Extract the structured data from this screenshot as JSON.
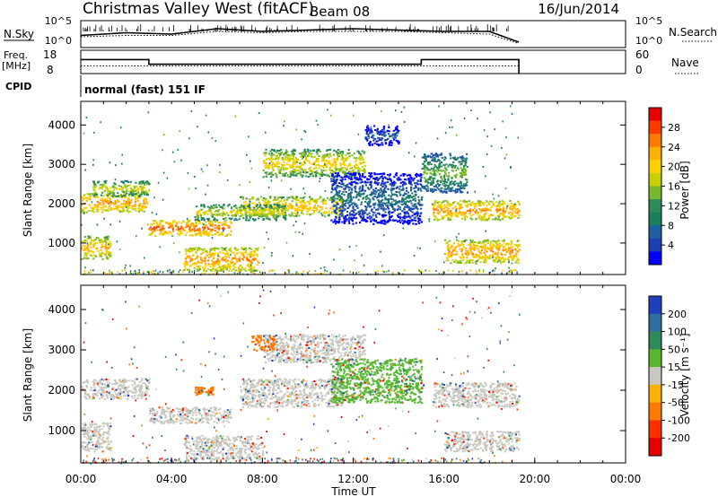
{
  "header": {
    "station": "Christmas Valley West (fitACF)",
    "beam": "Beam 08",
    "date": "16/Jun/2014"
  },
  "top_panels": {
    "nsky_label": "N.Sky",
    "nsky_ticks": [
      "10^5",
      "10^0"
    ],
    "nsearch_label": "N.Search",
    "nsearch_ticks": [
      "10^5",
      "10^0"
    ],
    "freq_label_1": "Freq.",
    "freq_label_2": "[MHz]",
    "freq_ticks": [
      "18",
      "8"
    ],
    "nave_label": "Nave",
    "nave_ticks": [
      "60",
      "0"
    ],
    "cpid_label": "CPID",
    "cpid_value": "normal (fast) 151 IF"
  },
  "x_axis": {
    "label": "Time UT",
    "ticks": [
      "00:00",
      "04:00",
      "08:00",
      "12:00",
      "16:00",
      "20:00",
      "00:00"
    ]
  },
  "power_colorbar": {
    "label": "Power [dB]",
    "ticks": [
      "28",
      "24",
      "20",
      "16",
      "12",
      "8",
      "4"
    ],
    "colors": [
      "#e60000",
      "#ff3a00",
      "#ff7a00",
      "#ffb000",
      "#ffd000",
      "#c8d000",
      "#79b82e",
      "#2e8b57",
      "#1a7f5a",
      "#1e5fa0",
      "#1a3fb0",
      "#0000ff"
    ]
  },
  "velocity_colorbar": {
    "label": "Velocity [m s⁻¹]",
    "ticks": [
      "200",
      "100",
      "50",
      "15",
      "-15",
      "-50",
      "-100",
      "-200"
    ],
    "colors": [
      "#1f3fbf",
      "#2f6f9f",
      "#2e8b57",
      "#55b830",
      "#c8c8c0",
      "#ffb000",
      "#ff7a00",
      "#ff3000",
      "#e60000"
    ]
  },
  "chart_data": [
    {
      "type": "heatmap",
      "title": "Power",
      "xlabel": "",
      "ylabel": "Slant Range [km]",
      "xlim": [
        0,
        24
      ],
      "ylim": [
        200,
        4600
      ],
      "yticks": [
        "4000",
        "3000",
        "2000",
        "1000"
      ],
      "colorbar": "Power [dB]",
      "bands": [
        {
          "x": [
            0,
            2.9
          ],
          "y": [
            1800,
            2300
          ],
          "level": 24
        },
        {
          "x": [
            0.5,
            3
          ],
          "y": [
            2200,
            2600
          ],
          "level": 18
        },
        {
          "x": [
            0,
            1.3
          ],
          "y": [
            600,
            1200
          ],
          "level": 22
        },
        {
          "x": [
            2.9,
            6.6
          ],
          "y": [
            1200,
            1600
          ],
          "level": 26
        },
        {
          "x": [
            4.5,
            7.8
          ],
          "y": [
            300,
            900
          ],
          "level": 24
        },
        {
          "x": [
            7,
            11.5
          ],
          "y": [
            1700,
            2200
          ],
          "level": 22
        },
        {
          "x": [
            8,
            12.5
          ],
          "y": [
            2700,
            3400
          ],
          "level": 20
        },
        {
          "x": [
            5,
            9
          ],
          "y": [
            1600,
            2000
          ],
          "level": 18
        },
        {
          "x": [
            11,
            15
          ],
          "y": [
            1500,
            2800
          ],
          "level": 8
        },
        {
          "x": [
            12.5,
            14
          ],
          "y": [
            3500,
            4000
          ],
          "level": 6
        },
        {
          "x": [
            15.5,
            19.3
          ],
          "y": [
            1600,
            2100
          ],
          "level": 24
        },
        {
          "x": [
            16,
            19.3
          ],
          "y": [
            500,
            1100
          ],
          "level": 24
        },
        {
          "x": [
            15,
            17
          ],
          "y": [
            2300,
            3300
          ],
          "level": 14
        }
      ]
    },
    {
      "type": "heatmap",
      "title": "Velocity",
      "xlabel": "Time UT",
      "ylabel": "Slant Range [km]",
      "xlim": [
        0,
        24
      ],
      "ylim": [
        200,
        4600
      ],
      "yticks": [
        "4000",
        "3000",
        "2000",
        "1000"
      ],
      "colorbar": "Velocity [m s⁻¹]",
      "bands": [
        {
          "x": [
            0,
            3
          ],
          "y": [
            1800,
            2300
          ],
          "value": 0
        },
        {
          "x": [
            0,
            1.3
          ],
          "y": [
            500,
            1200
          ],
          "value": 0
        },
        {
          "x": [
            3,
            6.6
          ],
          "y": [
            1200,
            1600
          ],
          "value": 0
        },
        {
          "x": [
            4.5,
            8
          ],
          "y": [
            300,
            900
          ],
          "value": 0
        },
        {
          "x": [
            7,
            11.5
          ],
          "y": [
            1600,
            2300
          ],
          "value": 0
        },
        {
          "x": [
            8,
            12.5
          ],
          "y": [
            2700,
            3400
          ],
          "value": 0
        },
        {
          "x": [
            11,
            15
          ],
          "y": [
            1700,
            2800
          ],
          "value": 30
        },
        {
          "x": [
            15.5,
            19.3
          ],
          "y": [
            1600,
            2200
          ],
          "value": 0
        },
        {
          "x": [
            16,
            19.3
          ],
          "y": [
            500,
            1000
          ],
          "value": 0
        },
        {
          "x": [
            7.5,
            8.5
          ],
          "y": [
            3000,
            3400
          ],
          "value": -40
        },
        {
          "x": [
            5,
            5.8
          ],
          "y": [
            1900,
            2100
          ],
          "value": -40
        }
      ]
    },
    {
      "type": "line",
      "title": "N.Sky / N.Search",
      "x": [
        0,
        2,
        4,
        6,
        8,
        10,
        12,
        14,
        16,
        18,
        19.3
      ],
      "series": [
        {
          "name": "N.Sky",
          "values": [
            0.45,
            0.55,
            0.5,
            0.7,
            0.6,
            0.65,
            0.7,
            0.65,
            0.6,
            0.6,
            0.2
          ]
        },
        {
          "name": "N.Search",
          "values": [
            0.4,
            0.45,
            0.45,
            0.6,
            0.55,
            0.6,
            0.6,
            0.6,
            0.55,
            0.5,
            0.15
          ]
        }
      ]
    },
    {
      "type": "line",
      "title": "Freq / Nave",
      "x": [
        0,
        3,
        3,
        15,
        15,
        19.3
      ],
      "series": [
        {
          "name": "Freq.",
          "values": [
            14,
            14,
            12,
            12,
            14,
            14
          ]
        },
        {
          "name": "Nave",
          "values": [
            20,
            20,
            20,
            20,
            20,
            20
          ]
        }
      ]
    }
  ]
}
